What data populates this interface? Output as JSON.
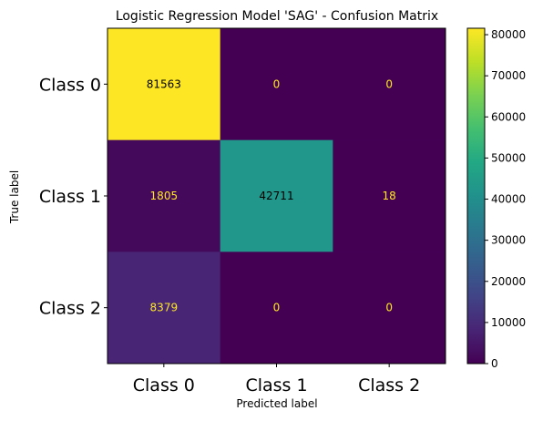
{
  "chart_data": {
    "type": "heatmap",
    "title": "Logistic Regression Model 'SAG' - Confusion Matrix",
    "xlabel": "Predicted label",
    "ylabel": "True label",
    "x_categories": [
      "Class 0",
      "Class 1",
      "Class 2"
    ],
    "y_categories": [
      "Class 0",
      "Class 1",
      "Class 2"
    ],
    "values": [
      [
        81563,
        0,
        0
      ],
      [
        1805,
        42711,
        18
      ],
      [
        8379,
        0,
        0
      ]
    ],
    "colorbar": {
      "colormap": "viridis",
      "range": [
        0,
        81563
      ],
      "ticks": [
        0,
        10000,
        20000,
        30000,
        40000,
        50000,
        60000,
        70000,
        80000
      ]
    },
    "text_colors": {
      "on_dark": "#fde725",
      "on_light": "#000000"
    }
  }
}
